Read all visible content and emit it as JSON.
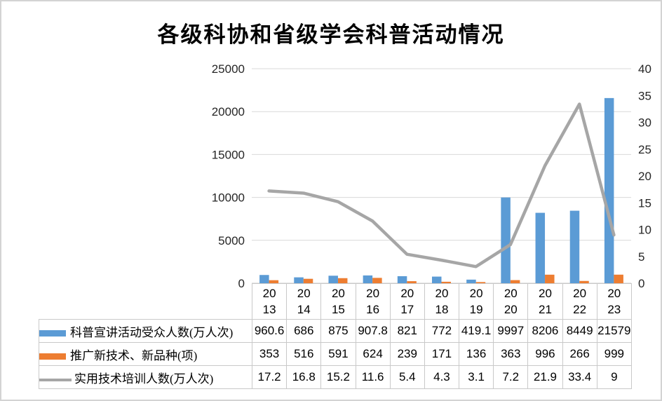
{
  "chart_data": {
    "type": "combo-bar-line",
    "title": "各级科协和省级学会科普活动情况",
    "categories": [
      "2013",
      "2014",
      "2015",
      "2016",
      "2017",
      "2018",
      "2019",
      "2020",
      "2021",
      "2022",
      "2023"
    ],
    "series": [
      {
        "key": "audience",
        "name": "科普宣讲活动受众人数(万人次)",
        "type": "bar",
        "axis": "left",
        "color": "#5B9BD5",
        "values": [
          960.6,
          686,
          875,
          907.8,
          821,
          772,
          419.1,
          9997,
          8206,
          8449,
          21579
        ]
      },
      {
        "key": "new-tech",
        "name": "推广新技术、新品种(项)",
        "type": "bar",
        "axis": "left",
        "color": "#ED7D31",
        "values": [
          353,
          516,
          591,
          624,
          239,
          171,
          136,
          363,
          996,
          266,
          999
        ]
      },
      {
        "key": "training",
        "name": "实用技术培训人数(万人次)",
        "type": "line",
        "axis": "right",
        "color": "#A6A6A6",
        "values": [
          17.2,
          16.8,
          15.2,
          11.6,
          5.4,
          4.3,
          3.1,
          7.2,
          21.9,
          33.4,
          9
        ]
      }
    ],
    "y_left": {
      "min": 0,
      "max": 25000,
      "step": 5000
    },
    "y_right": {
      "min": 0,
      "max": 40,
      "step": 5
    },
    "gridlines": true,
    "legend_position": "data-table-left",
    "colors": {
      "grid": "#D9D9D9",
      "axis_line": "#C9C9C9",
      "table_border": "#C9C9C9",
      "axis_text": "#262626",
      "frame_border": "#D3D3D3"
    }
  }
}
